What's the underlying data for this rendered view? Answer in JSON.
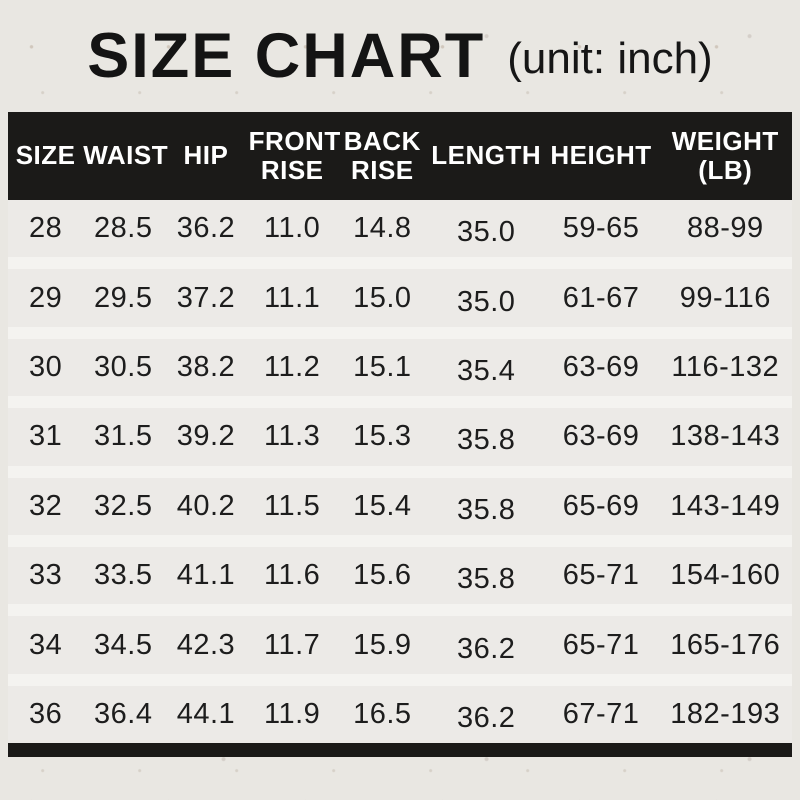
{
  "title": "SIZE CHART",
  "unit_note": "(unit: inch)",
  "colors": {
    "page_background": "#e9e7e2",
    "header_background": "#1b1a18",
    "header_text": "#ffffff",
    "row_background": "#eceae7",
    "body_text": "#1d1d1d",
    "bottom_bar": "#1b1a18"
  },
  "chart_data": {
    "type": "table",
    "title": "SIZE CHART",
    "unit": "inch",
    "weight_unit": "lb",
    "columns": [
      "SIZE",
      "WAIST",
      "HIP",
      "FRONT RISE",
      "BACK RISE",
      "LENGTH",
      "HEIGHT",
      "WEIGHT (LB)"
    ],
    "columns_display": [
      "SIZE",
      "WAIST",
      "HIP",
      "FRONT\nRISE",
      "BACK\nRISE",
      "LENGTH",
      "HEIGHT",
      "WEIGHT\n(LB)"
    ],
    "rows": [
      [
        "28",
        "28.5",
        "36.2",
        "11.0",
        "14.8",
        "35.0",
        "59-65",
        "88-99"
      ],
      [
        "29",
        "29.5",
        "37.2",
        "11.1",
        "15.0",
        "35.0",
        "61-67",
        "99-116"
      ],
      [
        "30",
        "30.5",
        "38.2",
        "11.2",
        "15.1",
        "35.4",
        "63-69",
        "116-132"
      ],
      [
        "31",
        "31.5",
        "39.2",
        "11.3",
        "15.3",
        "35.8",
        "63-69",
        "138-143"
      ],
      [
        "32",
        "32.5",
        "40.2",
        "11.5",
        "15.4",
        "35.8",
        "65-69",
        "143-149"
      ],
      [
        "33",
        "33.5",
        "41.1",
        "11.6",
        "15.6",
        "35.8",
        "65-71",
        "154-160"
      ],
      [
        "34",
        "34.5",
        "42.3",
        "11.7",
        "15.9",
        "36.2",
        "65-71",
        "165-176"
      ],
      [
        "36",
        "36.4",
        "44.1",
        "11.9",
        "16.5",
        "36.2",
        "67-71",
        "182-193"
      ]
    ]
  }
}
